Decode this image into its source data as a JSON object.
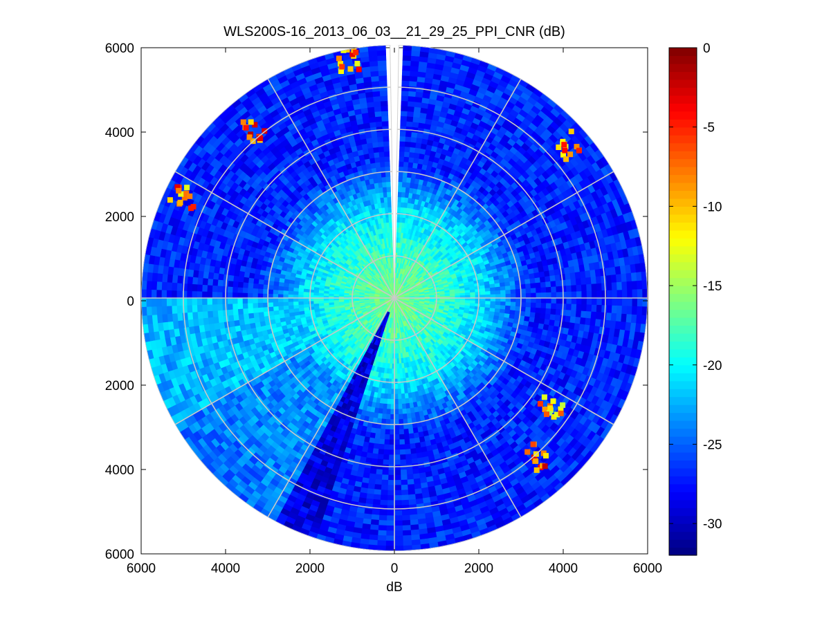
{
  "chart_data": {
    "type": "heatmap",
    "subtype": "polar-ppi",
    "title": "WLS200S-16_2013_06_03__21_29_25_PPI_CNR (dB)",
    "xlabel": "dB",
    "ylabel": "",
    "xlim": [
      -6000,
      6000
    ],
    "ylim": [
      -6000,
      6000
    ],
    "x_tick_values": [
      -6000,
      -4000,
      -2000,
      0,
      2000,
      4000,
      6000
    ],
    "x_tick_labels": [
      "6000",
      "4000",
      "2000",
      "0",
      "2000",
      "4000",
      "6000"
    ],
    "y_tick_values": [
      6000,
      4000,
      2000,
      0,
      -2000,
      -4000,
      -6000
    ],
    "y_tick_labels": [
      "6000",
      "4000",
      "2000",
      "0",
      "2000",
      "4000",
      "6000"
    ],
    "max_range": 6000,
    "range_rings": [
      1000,
      2000,
      3000,
      4000,
      5000,
      6000
    ],
    "spokes_deg": [
      0,
      30,
      60,
      90,
      120,
      150,
      180,
      210,
      240,
      270,
      300,
      330
    ],
    "missing_sector_deg": [
      -1,
      1
    ],
    "colorbar": {
      "clim": [
        -32,
        0
      ],
      "tick_values": [
        0,
        -5,
        -10,
        -15,
        -20,
        -25,
        -30
      ],
      "tick_labels": [
        "0",
        "-5",
        "-10",
        "-15",
        "-20",
        "-25",
        "-30"
      ],
      "colormap": "jet",
      "levels": 64
    },
    "field": {
      "near_value": -16,
      "near_range": 1000,
      "mid_value": -21,
      "mid_range": 2100,
      "far_value": -27,
      "west_sector_deg": [
        240,
        270
      ],
      "west_sector_value": -21,
      "southwest_sector_deg": [
        205,
        240
      ],
      "southwest_sector_value": -22.5,
      "dark_wedge_deg": [
        198,
        208
      ],
      "dark_wedge_value": -29
    },
    "hotspots": [
      {
        "label": "north",
        "azimuth_deg": 349,
        "range": 5750,
        "value": -8
      },
      {
        "label": "north-northwest",
        "azimuth_deg": 320,
        "range": 5200,
        "value": -6
      },
      {
        "label": "northeast",
        "azimuth_deg": 49,
        "range": 5500,
        "value": -9
      },
      {
        "label": "west-northwest",
        "azimuth_deg": 296,
        "range": 5500,
        "value": -8
      },
      {
        "label": "east-southeast",
        "azimuth_deg": 125,
        "range": 4550,
        "value": -10
      },
      {
        "label": "southeast",
        "azimuth_deg": 138,
        "range": 5050,
        "value": -7
      }
    ]
  }
}
